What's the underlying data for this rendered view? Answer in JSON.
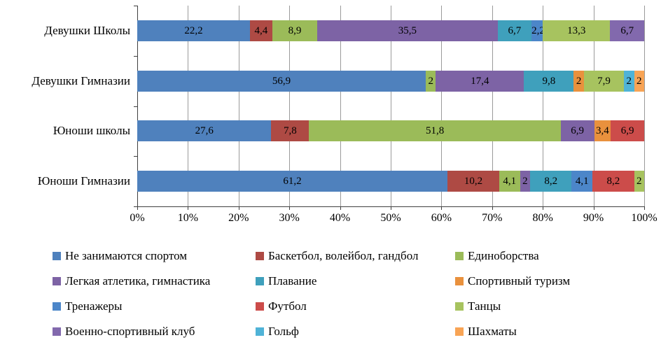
{
  "chart_data": {
    "type": "bar",
    "variant": "stacked-horizontal-100pct",
    "title": "",
    "categories": [
      "Девушки Школы",
      "Девушки Гимназии",
      "Юноши школы",
      "Юноши Гимназии"
    ],
    "series": [
      {
        "name": "Не занимаются спортом",
        "color": "#4F81BD",
        "values": [
          22.2,
          56.9,
          27.6,
          61.2
        ]
      },
      {
        "name": "Баскетбол, волейбол, гандбол",
        "color": "#AE4A44",
        "values": [
          4.4,
          0,
          7.8,
          10.2
        ]
      },
      {
        "name": "Единоборства",
        "color": "#9BBB59",
        "values": [
          8.9,
          2,
          51.8,
          4.1
        ]
      },
      {
        "name": "Легкая атлетика, гимнастика",
        "color": "#7D63A5",
        "values": [
          35.5,
          17.4,
          6.9,
          2
        ]
      },
      {
        "name": "Плавание",
        "color": "#3FA0BC",
        "values": [
          6.7,
          9.8,
          0,
          8.2
        ]
      },
      {
        "name": "Спортивный туризм",
        "color": "#E9913D",
        "values": [
          0,
          2,
          3.4,
          0
        ]
      },
      {
        "name": "Тренажеры",
        "color": "#4C86C9",
        "values": [
          2.2,
          0,
          0,
          4.1
        ]
      },
      {
        "name": "Футбол",
        "color": "#CC4C4A",
        "values": [
          0,
          0,
          6.9,
          8.2
        ]
      },
      {
        "name": "Танцы",
        "color": "#A7C35F",
        "values": [
          13.3,
          7.9,
          0,
          2
        ]
      },
      {
        "name": "Военно-спортивный клуб",
        "color": "#8269AD",
        "values": [
          6.7,
          0,
          0,
          0
        ]
      },
      {
        "name": "Гольф",
        "color": "#4FB3D7",
        "values": [
          0,
          2,
          0,
          0
        ]
      },
      {
        "name": "Шахматы",
        "color": "#F8A455",
        "values": [
          0,
          2,
          0,
          0
        ]
      }
    ],
    "x_axis": {
      "min": 0,
      "max": 100,
      "ticks": [
        "0%",
        "10%",
        "20%",
        "30%",
        "40%",
        "50%",
        "60%",
        "70%",
        "80%",
        "90%",
        "100%"
      ]
    },
    "data_labels": {
      "shown": true,
      "decimal_separator": ","
    },
    "legend": {
      "position": "bottom",
      "columns": 3
    },
    "gridlines": true,
    "style": {
      "grid_color": "#9a9a9a",
      "axis_color": "#3f3f3f",
      "label_color": "#000000",
      "background": "#ffffff"
    }
  }
}
